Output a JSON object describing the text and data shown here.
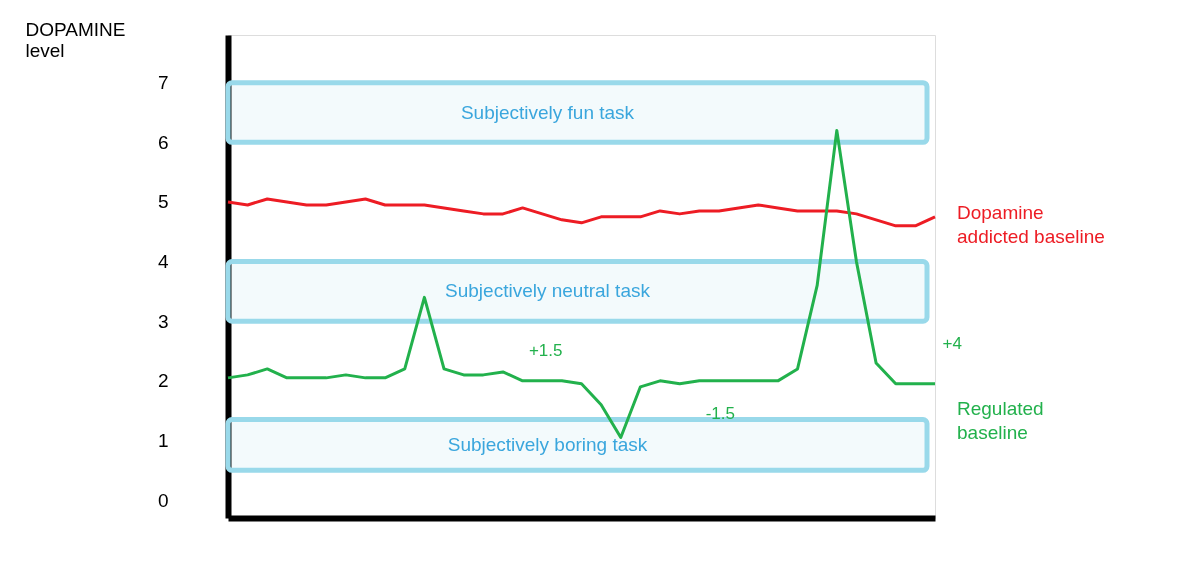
{
  "chart_data": {
    "type": "line",
    "ylabel": "DOPAMINE level",
    "categories": [
      null,
      null,
      null,
      null,
      null,
      null,
      null,
      null,
      null,
      null,
      null,
      null,
      null,
      null,
      null,
      null,
      null,
      null,
      null,
      null,
      null,
      null,
      null,
      null,
      null,
      null,
      null,
      null,
      null,
      null,
      null,
      null,
      null,
      null,
      null,
      null,
      null
    ],
    "ylim": [
      -0.3,
      7.8
    ],
    "yticks": [
      0,
      1,
      2,
      3,
      4,
      5,
      6,
      7
    ],
    "tick_labels": "y",
    "grid": false,
    "marker": "none",
    "line_style": "solid",
    "series": [
      {
        "name": "Dopamine addicted baseline",
        "color": "#ed1c24",
        "values": [
          5.0,
          4.95,
          5.05,
          5.0,
          4.95,
          4.95,
          5.0,
          5.05,
          4.95,
          4.95,
          4.95,
          4.9,
          4.85,
          4.8,
          4.8,
          4.9,
          4.8,
          4.7,
          4.65,
          4.75,
          4.75,
          4.75,
          4.85,
          4.8,
          4.85,
          4.85,
          4.9,
          4.95,
          4.9,
          4.85,
          4.85,
          4.85,
          4.8,
          4.7,
          4.6,
          4.6,
          4.75
        ]
      },
      {
        "name": "Regulated baseline",
        "color": "#22b14c",
        "values": [
          2.05,
          2.1,
          2.2,
          2.05,
          2.05,
          2.05,
          2.1,
          2.05,
          2.05,
          2.2,
          3.4,
          2.2,
          2.1,
          2.1,
          2.15,
          2.0,
          2.0,
          2.0,
          1.95,
          1.6,
          1.05,
          1.9,
          2.0,
          1.95,
          2.0,
          2.0,
          2.0,
          2.0,
          2.0,
          2.2,
          3.6,
          6.2,
          4.0,
          2.3,
          1.95,
          1.95,
          1.95
        ]
      }
    ],
    "bands": [
      {
        "axis": "y",
        "from": 6.0,
        "to": 7.0,
        "label": "Subjectively fun task",
        "color": "#99d9ea"
      },
      {
        "axis": "y",
        "from": 3.0,
        "to": 4.0,
        "label": "Subjectively neutral task",
        "color": "#99d9ea"
      },
      {
        "axis": "y",
        "from": 0.5,
        "to": 1.35,
        "label": "Subjectively boring task",
        "color": "#99d9ea"
      }
    ],
    "annotations": [
      "+1.5",
      "-1.5",
      "+4"
    ]
  }
}
